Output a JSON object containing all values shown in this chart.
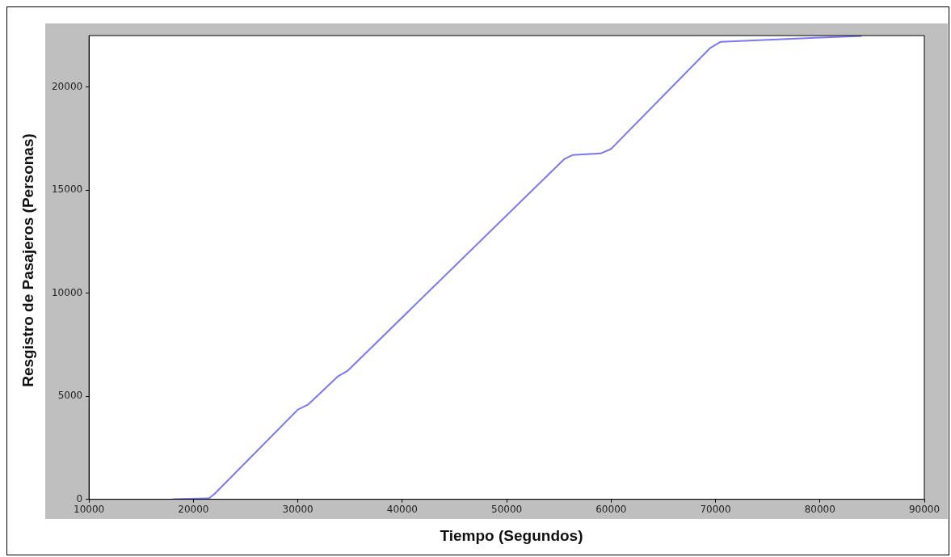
{
  "chart_data": {
    "type": "line",
    "xlabel": "Tiempo (Segundos)",
    "ylabel": "Resgistro de Pasajeros (Personas)",
    "x": [
      18000,
      21500,
      22000,
      30000,
      31000,
      33800,
      34800,
      55500,
      56300,
      59000,
      60000,
      69500,
      70500,
      80000,
      84000
    ],
    "series": [
      {
        "color": "#7878f8",
        "values": [
          0,
          50,
          250,
          4350,
          4600,
          5950,
          6250,
          16500,
          16700,
          16780,
          17000,
          21900,
          22200,
          22400,
          22480
        ]
      }
    ],
    "xlim": [
      10000,
      90000
    ],
    "xticks": [
      10000,
      20000,
      30000,
      40000,
      50000,
      60000,
      70000,
      80000,
      90000
    ],
    "ylim": [
      0,
      22500
    ],
    "yticks": [
      0,
      5000,
      10000,
      15000,
      20000
    ],
    "grid": false,
    "legend": false,
    "marker": "none",
    "line_style": "solid"
  }
}
